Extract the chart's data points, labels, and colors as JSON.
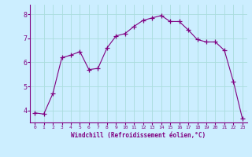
{
  "x": [
    0,
    1,
    2,
    3,
    4,
    5,
    6,
    7,
    8,
    9,
    10,
    11,
    12,
    13,
    14,
    15,
    16,
    17,
    18,
    19,
    20,
    21,
    22,
    23
  ],
  "y": [
    3.9,
    3.85,
    4.7,
    6.2,
    6.3,
    6.45,
    5.7,
    5.75,
    6.6,
    7.1,
    7.2,
    7.5,
    7.75,
    7.85,
    7.95,
    7.7,
    7.7,
    7.35,
    6.95,
    6.85,
    6.85,
    6.5,
    5.2,
    3.65
  ],
  "line_color": "#800080",
  "marker": "+",
  "marker_size": 4,
  "bg_color": "#cceeff",
  "grid_color": "#aadddd",
  "xlabel": "Windchill (Refroidissement éolien,°C)",
  "xlabel_color": "#800080",
  "tick_color": "#800080",
  "axis_color": "#800080",
  "ylim": [
    3.5,
    8.4
  ],
  "xlim": [
    -0.5,
    23.5
  ],
  "yticks": [
    4,
    5,
    6,
    7,
    8
  ],
  "xticks": [
    0,
    1,
    2,
    3,
    4,
    5,
    6,
    7,
    8,
    9,
    10,
    11,
    12,
    13,
    14,
    15,
    16,
    17,
    18,
    19,
    20,
    21,
    22,
    23
  ]
}
